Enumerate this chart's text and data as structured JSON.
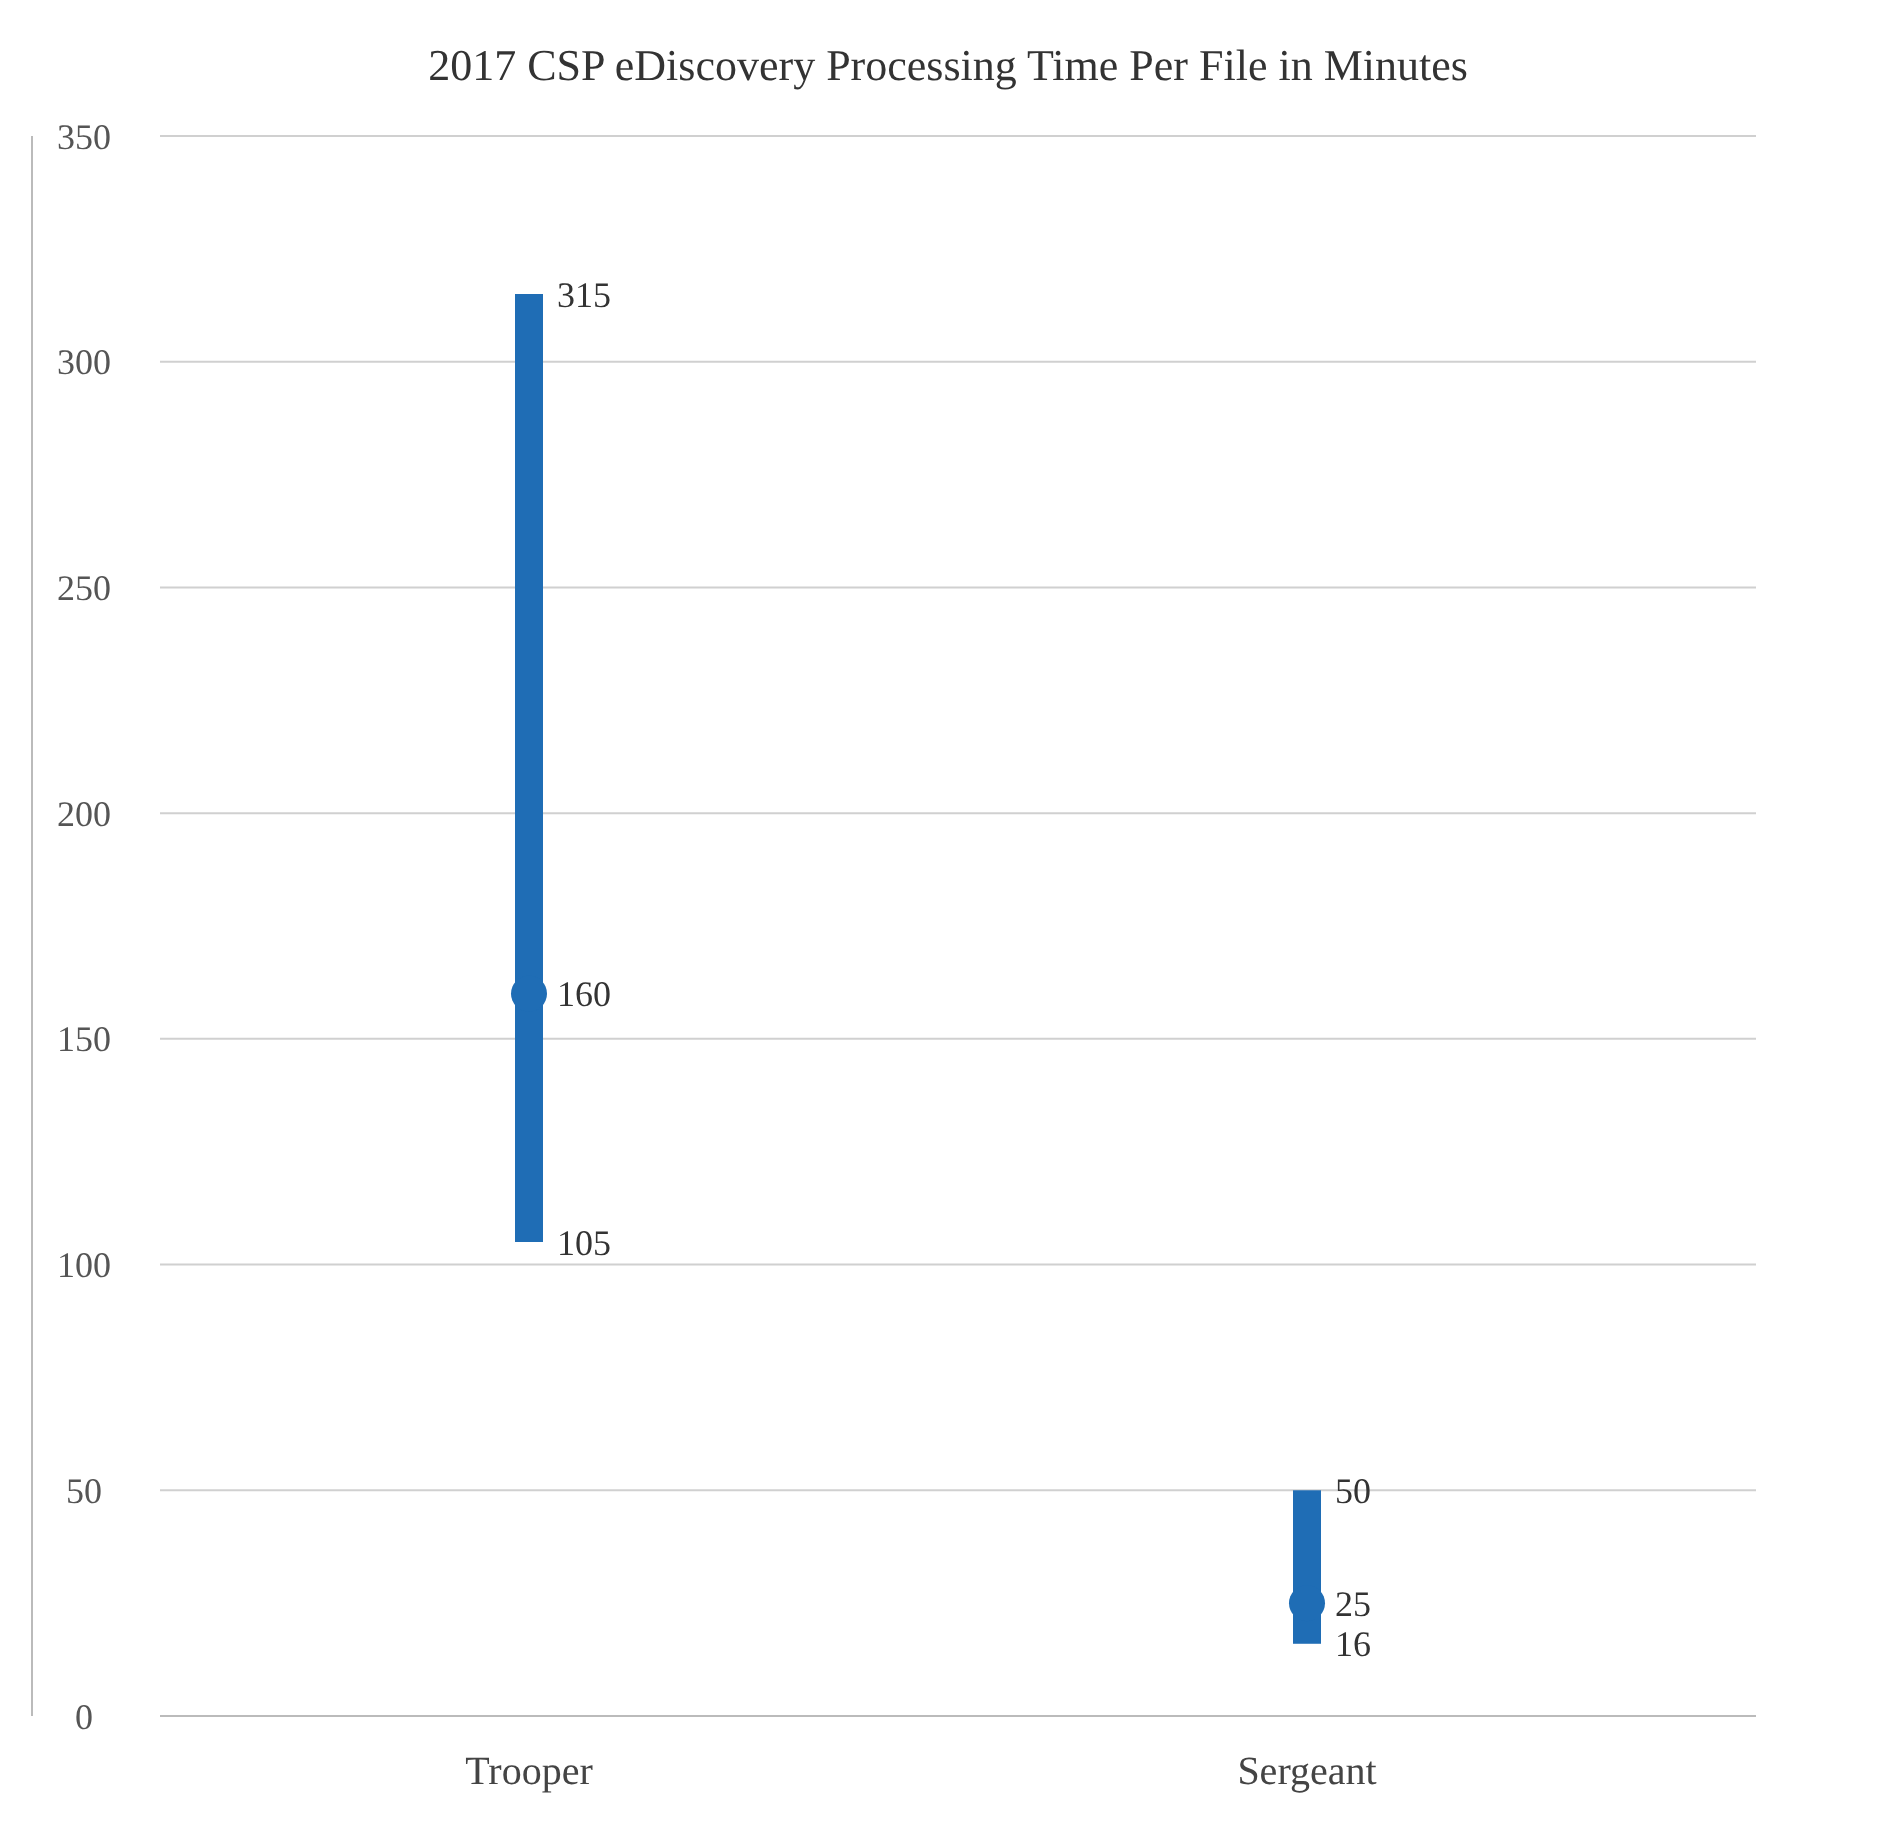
{
  "chart_data": {
    "type": "bar",
    "title": "2017 CSP eDiscovery Processing Time Per File in Minutes",
    "categories": [
      "Trooper",
      "Sergeant"
    ],
    "series": [
      {
        "color": "#1f6db5",
        "base": [
          105,
          16
        ],
        "values": [
          210,
          34
        ]
      },
      {
        "type": "scatter",
        "color": "#1f6db5",
        "values": [
          160,
          25
        ],
        "marker": "circle",
        "value_labels": [
          "160",
          "25"
        ]
      }
    ],
    "annotations": [
      {
        "text": "315",
        "x": "Trooper",
        "y": 315
      },
      {
        "text": "105",
        "x": "Trooper",
        "y": 105
      },
      {
        "text": "50",
        "x": "Sergeant",
        "y": 50
      },
      {
        "text": "16",
        "x": "Sergeant",
        "y": 16
      }
    ],
    "ylim": [
      0,
      350
    ],
    "yticks": [
      0,
      50,
      100,
      150,
      200,
      250,
      300,
      350
    ],
    "grid": "y"
  }
}
